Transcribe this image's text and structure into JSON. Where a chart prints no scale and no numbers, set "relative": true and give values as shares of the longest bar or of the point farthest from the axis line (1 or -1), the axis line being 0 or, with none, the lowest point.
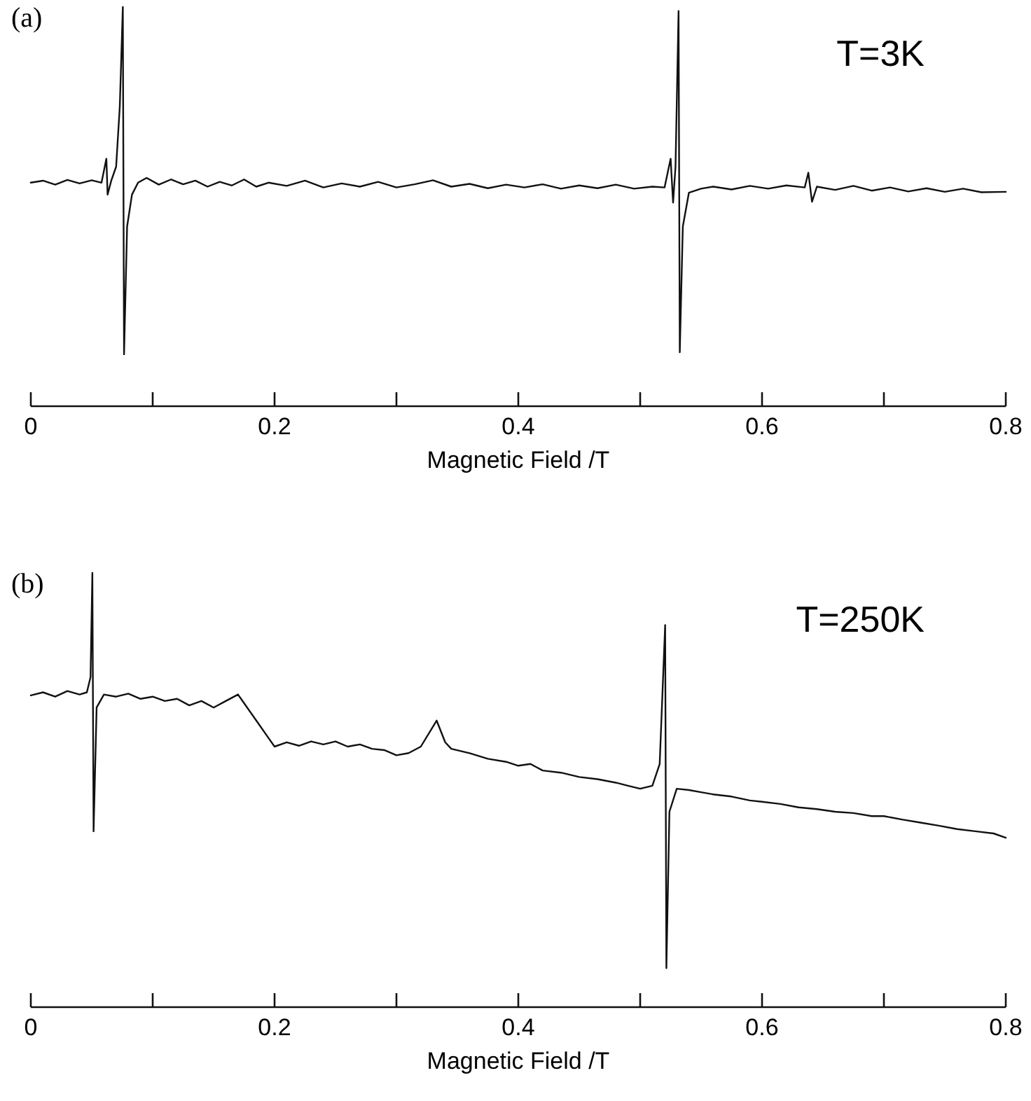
{
  "chart_data": [
    {
      "type": "line",
      "title": "(a)",
      "annotations": [
        "T=3K"
      ],
      "xlabel": "Magnetic Field /T",
      "relative": true,
      "color": "#111111",
      "xlim": [
        0,
        0.8
      ],
      "xticks": [
        0,
        {
          "value": 0.1,
          "label": null
        },
        0.2,
        {
          "value": 0.3,
          "label": null
        },
        0.4,
        {
          "value": 0.5,
          "label": null
        },
        0.6,
        {
          "value": 0.7,
          "label": null
        },
        0.8
      ],
      "x": [
        0,
        0.01,
        0.02,
        0.03,
        0.04,
        0.05,
        0.058,
        0.062,
        0.063,
        0.066,
        0.07,
        0.073,
        0.0755,
        0.0765,
        0.079,
        0.083,
        0.088,
        0.095,
        0.105,
        0.115,
        0.125,
        0.135,
        0.145,
        0.155,
        0.165,
        0.175,
        0.185,
        0.195,
        0.21,
        0.225,
        0.24,
        0.255,
        0.27,
        0.285,
        0.3,
        0.315,
        0.33,
        0.345,
        0.36,
        0.375,
        0.39,
        0.405,
        0.42,
        0.435,
        0.45,
        0.465,
        0.48,
        0.495,
        0.51,
        0.52,
        0.525,
        0.527,
        0.529,
        0.5315,
        0.5325,
        0.535,
        0.54,
        0.55,
        0.56,
        0.575,
        0.59,
        0.605,
        0.62,
        0.635,
        0.638,
        0.641,
        0.645,
        0.66,
        0.675,
        0.69,
        0.705,
        0.72,
        0.735,
        0.75,
        0.765,
        0.78,
        0.8
      ],
      "values": [
        0.56,
        0.565,
        0.555,
        0.567,
        0.558,
        0.566,
        0.56,
        0.62,
        0.53,
        0.565,
        0.6,
        0.75,
        1,
        0.13,
        0.45,
        0.53,
        0.56,
        0.572,
        0.555,
        0.568,
        0.556,
        0.565,
        0.55,
        0.562,
        0.553,
        0.568,
        0.55,
        0.56,
        0.552,
        0.565,
        0.548,
        0.558,
        0.55,
        0.562,
        0.548,
        0.556,
        0.566,
        0.55,
        0.557,
        0.546,
        0.555,
        0.548,
        0.556,
        0.545,
        0.553,
        0.546,
        0.555,
        0.545,
        0.55,
        0.548,
        0.62,
        0.51,
        0.6,
        0.99,
        0.135,
        0.45,
        0.535,
        0.545,
        0.55,
        0.543,
        0.552,
        0.545,
        0.553,
        0.548,
        0.585,
        0.512,
        0.55,
        0.542,
        0.552,
        0.54,
        0.548,
        0.538,
        0.546,
        0.537,
        0.545,
        0.536,
        0.537
      ]
    },
    {
      "type": "line",
      "title": "(b)",
      "annotations": [
        "T=250K"
      ],
      "xlabel": "Magnetic Field /T",
      "relative": true,
      "color": "#111111",
      "xlim": [
        0,
        0.8
      ],
      "xticks": [
        0,
        {
          "value": 0.1,
          "label": null
        },
        0.2,
        {
          "value": 0.3,
          "label": null
        },
        0.4,
        {
          "value": 0.5,
          "label": null
        },
        0.6,
        {
          "value": 0.7,
          "label": null
        },
        0.8
      ],
      "x": [
        0,
        0.01,
        0.02,
        0.03,
        0.04,
        0.046,
        0.049,
        0.0505,
        0.0515,
        0.054,
        0.06,
        0.07,
        0.08,
        0.09,
        0.1,
        0.11,
        0.12,
        0.13,
        0.14,
        0.15,
        0.16,
        0.17,
        0.175,
        0.185,
        0.195,
        0.2,
        0.21,
        0.22,
        0.23,
        0.24,
        0.25,
        0.26,
        0.27,
        0.28,
        0.29,
        0.3,
        0.31,
        0.32,
        0.333,
        0.34,
        0.345,
        0.36,
        0.375,
        0.39,
        0.4,
        0.41,
        0.42,
        0.435,
        0.45,
        0.465,
        0.48,
        0.49,
        0.5,
        0.51,
        0.516,
        0.5205,
        0.5215,
        0.524,
        0.53,
        0.54,
        0.55,
        0.56,
        0.575,
        0.59,
        0.6,
        0.615,
        0.63,
        0.645,
        0.66,
        0.675,
        0.69,
        0.7,
        0.715,
        0.73,
        0.745,
        0.76,
        0.775,
        0.79,
        0.8
      ],
      "values": [
        0.718,
        0.725,
        0.715,
        0.728,
        0.72,
        0.725,
        0.76,
        1,
        0.405,
        0.69,
        0.72,
        0.715,
        0.722,
        0.71,
        0.715,
        0.705,
        0.71,
        0.695,
        0.705,
        0.69,
        0.705,
        0.72,
        0.7,
        0.66,
        0.62,
        0.6,
        0.61,
        0.602,
        0.612,
        0.605,
        0.612,
        0.6,
        0.605,
        0.595,
        0.592,
        0.58,
        0.585,
        0.6,
        0.66,
        0.61,
        0.595,
        0.585,
        0.572,
        0.565,
        0.556,
        0.56,
        0.545,
        0.54,
        0.53,
        0.525,
        0.517,
        0.51,
        0.503,
        0.51,
        0.56,
        0.88,
        0.09,
        0.45,
        0.503,
        0.5,
        0.495,
        0.49,
        0.485,
        0.476,
        0.473,
        0.468,
        0.46,
        0.456,
        0.45,
        0.447,
        0.44,
        0.44,
        0.432,
        0.425,
        0.418,
        0.41,
        0.405,
        0.4,
        0.39
      ]
    }
  ]
}
